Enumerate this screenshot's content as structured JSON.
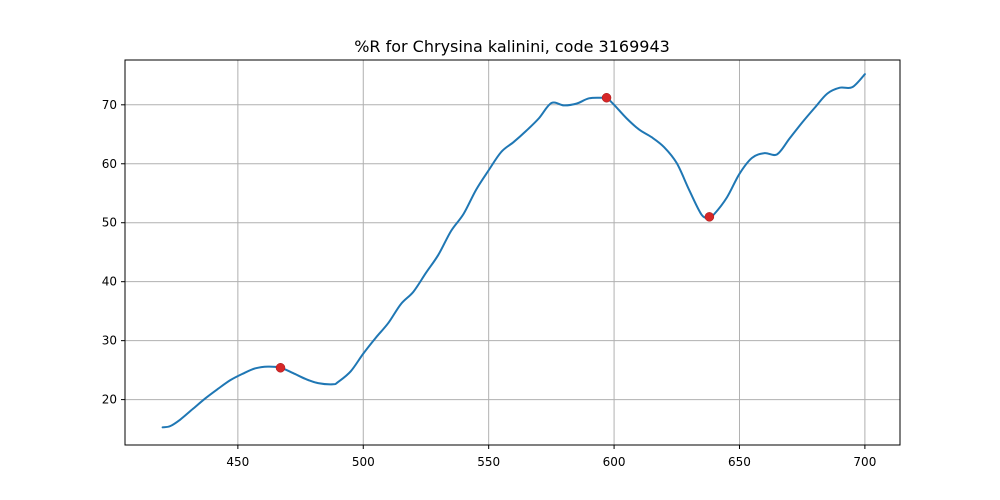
{
  "chart_data": {
    "type": "line",
    "title": "%R for Chrysina kalinini, code 3169943",
    "xlabel": "",
    "ylabel": "",
    "xlim": [
      405,
      714
    ],
    "ylim": [
      12.3,
      77.6
    ],
    "grid": true,
    "x_ticks": [
      450,
      500,
      550,
      600,
      650,
      700
    ],
    "y_ticks": [
      20,
      30,
      40,
      50,
      60,
      70
    ],
    "series": [
      {
        "color": "#1f77b4",
        "x": [
          420,
          423,
          427,
          432,
          437,
          442,
          447,
          452,
          457,
          462,
          467,
          472,
          477,
          482,
          488,
          490,
          495,
          500,
          505,
          510,
          515,
          520,
          525,
          530,
          535,
          540,
          545,
          550,
          555,
          560,
          565,
          570,
          575,
          580,
          585,
          590,
          595,
          597,
          600,
          605,
          610,
          615,
          620,
          625,
          630,
          635,
          638,
          640,
          645,
          650,
          655,
          660,
          665,
          670,
          675,
          680,
          685,
          690,
          695,
          700
        ],
        "y": [
          15.3,
          15.5,
          16.6,
          18.4,
          20.2,
          21.8,
          23.3,
          24.4,
          25.3,
          25.6,
          25.4,
          24.5,
          23.5,
          22.8,
          22.6,
          23.0,
          24.8,
          27.8,
          30.5,
          33.0,
          36.2,
          38.3,
          41.5,
          44.6,
          48.6,
          51.5,
          55.6,
          58.9,
          62.0,
          63.7,
          65.6,
          67.7,
          70.3,
          69.9,
          70.2,
          71.1,
          71.2,
          71.2,
          70.0,
          67.7,
          65.8,
          64.5,
          62.8,
          60.1,
          55.5,
          51.3,
          51.0,
          51.5,
          54.3,
          58.3,
          61.0,
          61.8,
          61.6,
          64.3,
          67.0,
          69.5,
          71.9,
          72.9,
          73.0,
          75.2
        ]
      }
    ],
    "highlighted_points": {
      "color": "#d62728",
      "x": [
        467,
        597,
        638
      ],
      "y": [
        25.4,
        71.2,
        51.0
      ]
    }
  }
}
